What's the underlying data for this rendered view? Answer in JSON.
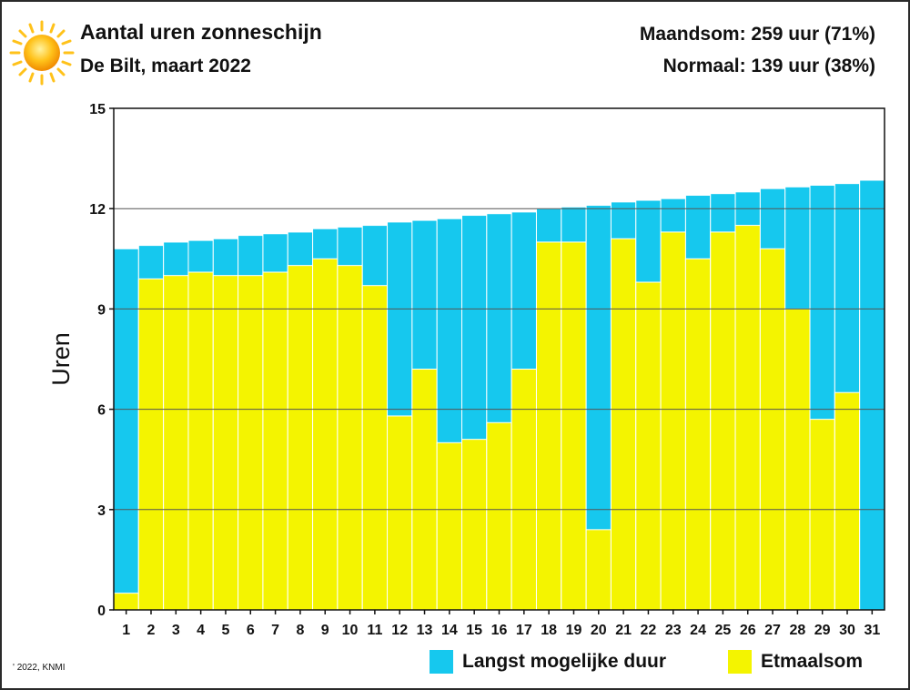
{
  "header": {
    "title": "Aantal uren zonneschijn",
    "subtitle": "De Bilt, maart 2022",
    "monthly_total": "Maandsom: 259 uur (71%)",
    "normal": "Normaal: 139 uur (38%)"
  },
  "icons": {
    "sun": "sun-icon"
  },
  "colors": {
    "possible": "#16c8ee",
    "actual": "#f4f400",
    "grid": "#555555",
    "axis": "#111111"
  },
  "footer": {
    "copyright": "' 2022, KNMI"
  },
  "chart_data": {
    "type": "bar",
    "ylabel": "Uren",
    "xlabel": "",
    "ylim": [
      0,
      15
    ],
    "yticks": [
      0,
      3,
      6,
      9,
      12,
      15
    ],
    "grid": "horizontal",
    "legend_position": "bottom-right",
    "categories": [
      "1",
      "2",
      "3",
      "4",
      "5",
      "6",
      "7",
      "8",
      "9",
      "10",
      "11",
      "12",
      "13",
      "14",
      "15",
      "16",
      "17",
      "18",
      "19",
      "20",
      "21",
      "22",
      "23",
      "24",
      "25",
      "26",
      "27",
      "28",
      "29",
      "30",
      "31"
    ],
    "series": [
      {
        "name": "Langst mogelijke duur",
        "color": "#16c8ee",
        "values": [
          10.8,
          10.9,
          11.0,
          11.05,
          11.1,
          11.2,
          11.25,
          11.3,
          11.4,
          11.45,
          11.5,
          11.6,
          11.65,
          11.7,
          11.8,
          11.85,
          11.9,
          12.0,
          12.05,
          12.1,
          12.2,
          12.25,
          12.3,
          12.4,
          12.45,
          12.5,
          12.6,
          12.65,
          12.7,
          12.75,
          12.85
        ]
      },
      {
        "name": "Etmaalsom",
        "color": "#f4f400",
        "values": [
          0.5,
          9.9,
          10.0,
          10.1,
          10.0,
          10.0,
          10.1,
          10.3,
          10.5,
          10.3,
          9.7,
          5.8,
          7.2,
          5.0,
          5.1,
          5.6,
          7.2,
          11.0,
          11.0,
          2.4,
          11.1,
          9.8,
          11.3,
          10.5,
          11.3,
          11.5,
          10.8,
          9.0,
          5.7,
          6.5,
          0.0
        ]
      }
    ]
  }
}
